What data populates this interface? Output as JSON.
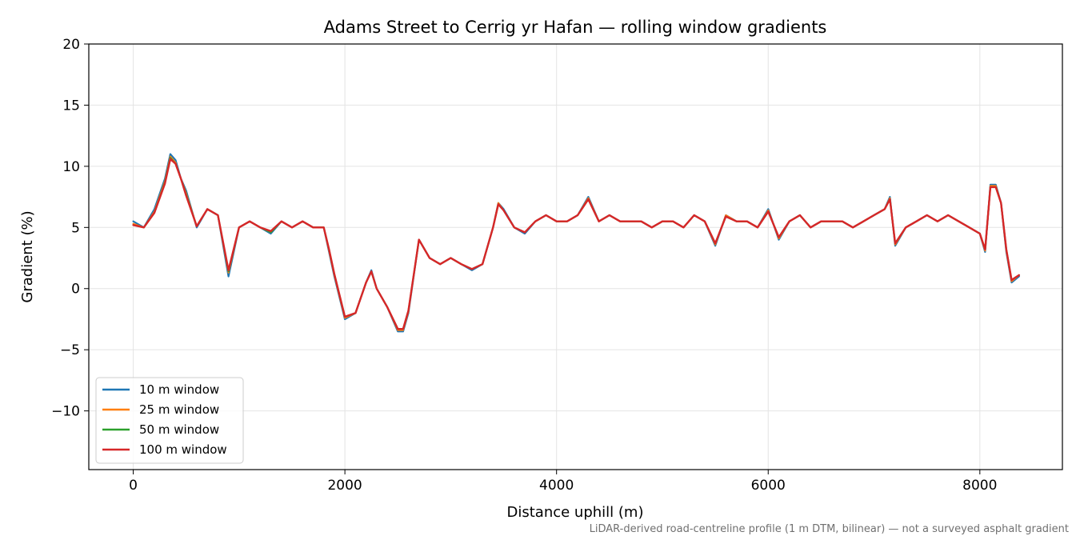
{
  "chart_data": {
    "type": "line",
    "title": "Adams Street to Cerrig yr Hafan — rolling window gradients",
    "xlabel": "Distance uphill (m)",
    "ylabel": "Gradient (%)",
    "xlim": [
      -420,
      8780
    ],
    "ylim": [
      -14.8,
      20
    ],
    "x_ticks": [
      0,
      2000,
      4000,
      6000,
      8000
    ],
    "y_ticks": [
      -10,
      -5,
      0,
      5,
      10,
      15,
      20
    ],
    "x_tick_labels": [
      "0",
      "2000",
      "4000",
      "6000",
      "8000"
    ],
    "y_tick_labels": [
      "−10",
      "−5",
      "0",
      "5",
      "10",
      "15",
      "20"
    ],
    "grid": true,
    "legend_position": "lower-left",
    "footnote": "LiDAR-derived road-centreline profile (1 m DTM, bilinear) — not a surveyed asphalt gradient",
    "x": [
      0,
      100,
      200,
      300,
      350,
      400,
      450,
      500,
      600,
      700,
      800,
      900,
      1000,
      1100,
      1200,
      1300,
      1400,
      1500,
      1600,
      1700,
      1800,
      1850,
      1900,
      2000,
      2100,
      2200,
      2250,
      2300,
      2400,
      2500,
      2550,
      2600,
      2700,
      2800,
      2900,
      3000,
      3100,
      3200,
      3300,
      3400,
      3450,
      3500,
      3600,
      3700,
      3800,
      3900,
      4000,
      4100,
      4200,
      4300,
      4400,
      4500,
      4600,
      4700,
      4800,
      4900,
      5000,
      5100,
      5200,
      5300,
      5400,
      5500,
      5600,
      5700,
      5800,
      5900,
      6000,
      6100,
      6200,
      6300,
      6400,
      6500,
      6600,
      6700,
      6800,
      6900,
      7000,
      7100,
      7150,
      7200,
      7300,
      7400,
      7500,
      7600,
      7700,
      7800,
      7900,
      8000,
      8050,
      8100,
      8150,
      8200,
      8250,
      8300,
      8370
    ],
    "series": [
      {
        "name": "10 m window",
        "color": "#1f77b4",
        "values": [
          5.5,
          5.0,
          6.5,
          9.0,
          11.0,
          10.5,
          9.0,
          8.0,
          5.0,
          6.5,
          6.0,
          1.0,
          5.0,
          5.5,
          5.0,
          4.5,
          5.5,
          5.0,
          5.5,
          5.0,
          5.0,
          3.0,
          1.0,
          -2.5,
          -2.0,
          0.5,
          1.5,
          0.0,
          -1.5,
          -3.5,
          -3.5,
          -2.0,
          4.0,
          2.5,
          2.0,
          2.5,
          2.0,
          1.5,
          2.0,
          5.0,
          7.0,
          6.5,
          5.0,
          4.5,
          5.5,
          6.0,
          5.5,
          5.5,
          6.0,
          7.5,
          5.5,
          6.0,
          5.5,
          5.5,
          5.5,
          5.0,
          5.5,
          5.5,
          5.0,
          6.0,
          5.5,
          3.5,
          6.0,
          5.5,
          5.5,
          5.0,
          6.5,
          4.0,
          5.5,
          6.0,
          5.0,
          5.5,
          5.5,
          5.5,
          5.0,
          5.5,
          6.0,
          6.5,
          7.5,
          3.5,
          5.0,
          5.5,
          6.0,
          5.5,
          6.0,
          5.5,
          5.0,
          4.5,
          3.0,
          8.5,
          8.5,
          7.0,
          3.0,
          0.5,
          1.0
        ]
      },
      {
        "name": "25 m window",
        "color": "#ff7f0e",
        "values": [
          5.3,
          5.0,
          6.3,
          8.8,
          10.8,
          10.3,
          9.0,
          7.8,
          5.1,
          6.5,
          6.0,
          1.3,
          5.0,
          5.5,
          5.0,
          4.6,
          5.5,
          5.0,
          5.5,
          5.0,
          5.0,
          3.1,
          1.1,
          -2.4,
          -2.0,
          0.5,
          1.4,
          0.0,
          -1.5,
          -3.4,
          -3.4,
          -1.9,
          4.0,
          2.5,
          2.0,
          2.5,
          2.0,
          1.6,
          2.0,
          5.0,
          7.0,
          6.4,
          5.0,
          4.6,
          5.5,
          6.0,
          5.5,
          5.5,
          6.0,
          7.4,
          5.5,
          6.0,
          5.5,
          5.5,
          5.5,
          5.0,
          5.5,
          5.5,
          5.0,
          6.0,
          5.5,
          3.6,
          6.0,
          5.5,
          5.5,
          5.0,
          6.4,
          4.1,
          5.5,
          6.0,
          5.0,
          5.5,
          5.5,
          5.5,
          5.0,
          5.5,
          6.0,
          6.5,
          7.4,
          3.6,
          5.0,
          5.5,
          6.0,
          5.5,
          6.0,
          5.5,
          5.0,
          4.5,
          3.1,
          8.4,
          8.4,
          7.0,
          3.1,
          0.6,
          1.1
        ]
      },
      {
        "name": "50 m window",
        "color": "#2ca02c",
        "values": [
          5.2,
          5.0,
          6.2,
          8.7,
          10.7,
          10.2,
          9.0,
          7.7,
          5.1,
          6.5,
          6.0,
          1.4,
          5.0,
          5.5,
          5.0,
          4.6,
          5.5,
          5.0,
          5.5,
          5.0,
          5.0,
          3.2,
          1.2,
          -2.3,
          -2.0,
          0.5,
          1.4,
          0.0,
          -1.5,
          -3.3,
          -3.3,
          -1.8,
          4.0,
          2.5,
          2.0,
          2.5,
          2.0,
          1.6,
          2.0,
          5.0,
          6.9,
          6.4,
          5.0,
          4.6,
          5.5,
          6.0,
          5.5,
          5.5,
          6.0,
          7.3,
          5.5,
          6.0,
          5.5,
          5.5,
          5.5,
          5.0,
          5.5,
          5.5,
          5.0,
          6.0,
          5.5,
          3.7,
          5.9,
          5.5,
          5.5,
          5.0,
          6.3,
          4.2,
          5.5,
          6.0,
          5.0,
          5.5,
          5.5,
          5.5,
          5.0,
          5.5,
          6.0,
          6.5,
          7.3,
          3.7,
          5.0,
          5.5,
          6.0,
          5.5,
          6.0,
          5.5,
          5.0,
          4.5,
          3.2,
          8.3,
          8.3,
          7.0,
          3.2,
          0.7,
          1.1
        ]
      },
      {
        "name": "100 m window",
        "color": "#d62728",
        "values": [
          5.2,
          5.0,
          6.2,
          8.6,
          10.6,
          10.2,
          9.0,
          7.6,
          5.1,
          6.5,
          6.0,
          1.5,
          5.0,
          5.5,
          5.0,
          4.7,
          5.5,
          5.0,
          5.5,
          5.0,
          5.0,
          3.2,
          1.2,
          -2.3,
          -2.0,
          0.5,
          1.4,
          0.0,
          -1.5,
          -3.3,
          -3.3,
          -1.8,
          4.0,
          2.5,
          2.0,
          2.5,
          2.0,
          1.6,
          2.0,
          5.0,
          6.9,
          6.4,
          5.0,
          4.6,
          5.5,
          6.0,
          5.5,
          5.5,
          6.0,
          7.3,
          5.5,
          6.0,
          5.5,
          5.5,
          5.5,
          5.0,
          5.5,
          5.5,
          5.0,
          6.0,
          5.5,
          3.7,
          5.9,
          5.5,
          5.5,
          5.0,
          6.3,
          4.2,
          5.5,
          6.0,
          5.0,
          5.5,
          5.5,
          5.5,
          5.0,
          5.5,
          6.0,
          6.5,
          7.3,
          3.7,
          5.0,
          5.5,
          6.0,
          5.5,
          6.0,
          5.5,
          5.0,
          4.5,
          3.2,
          8.3,
          8.3,
          7.0,
          3.2,
          0.7,
          1.1
        ]
      }
    ]
  }
}
